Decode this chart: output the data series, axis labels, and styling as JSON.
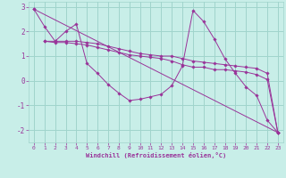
{
  "background_color": "#c8eee8",
  "grid_color": "#a0d4cc",
  "line_color": "#993399",
  "xlabel": "Windchill (Refroidissement éolien,°C)",
  "xlim": [
    -0.5,
    23.5
  ],
  "ylim": [
    -2.5,
    3.2
  ],
  "yticks": [
    -2,
    -1,
    0,
    1,
    2,
    3
  ],
  "xticks": [
    0,
    1,
    2,
    3,
    4,
    5,
    6,
    7,
    8,
    9,
    10,
    11,
    12,
    13,
    14,
    15,
    16,
    17,
    18,
    19,
    20,
    21,
    22,
    23
  ],
  "lines": [
    {
      "x": [
        0,
        1,
        2,
        3,
        4,
        5,
        6,
        7,
        8,
        9,
        10,
        11,
        12,
        13,
        14,
        15,
        16,
        17,
        18,
        19,
        20,
        21,
        22,
        23
      ],
      "y": [
        2.9,
        2.2,
        1.6,
        2.0,
        2.3,
        0.7,
        0.3,
        -0.15,
        -0.5,
        -0.8,
        -0.75,
        -0.65,
        -0.55,
        -0.2,
        0.6,
        2.85,
        2.4,
        1.7,
        0.9,
        0.3,
        -0.25,
        -0.6,
        -1.6,
        -2.1
      ]
    },
    {
      "x": [
        0,
        23
      ],
      "y": [
        2.9,
        -2.1
      ]
    },
    {
      "x": [
        1,
        2,
        3,
        4,
        5,
        6,
        7,
        8,
        9,
        10,
        11,
        12,
        13,
        14,
        15,
        16,
        17,
        18,
        19,
        20,
        21,
        22,
        23
      ],
      "y": [
        1.6,
        1.6,
        1.6,
        1.6,
        1.55,
        1.5,
        1.4,
        1.3,
        1.2,
        1.1,
        1.05,
        1.0,
        1.0,
        0.9,
        0.8,
        0.75,
        0.7,
        0.65,
        0.6,
        0.55,
        0.5,
        0.3,
        -2.1
      ]
    },
    {
      "x": [
        1,
        2,
        3,
        4,
        5,
        6,
        7,
        8,
        9,
        10,
        11,
        12,
        13,
        14,
        15,
        16,
        17,
        18,
        19,
        20,
        21,
        22,
        23
      ],
      "y": [
        1.6,
        1.55,
        1.55,
        1.5,
        1.45,
        1.35,
        1.25,
        1.15,
        1.05,
        1.0,
        0.95,
        0.9,
        0.8,
        0.65,
        0.55,
        0.55,
        0.45,
        0.45,
        0.4,
        0.35,
        0.25,
        0.05,
        -2.1
      ]
    }
  ]
}
